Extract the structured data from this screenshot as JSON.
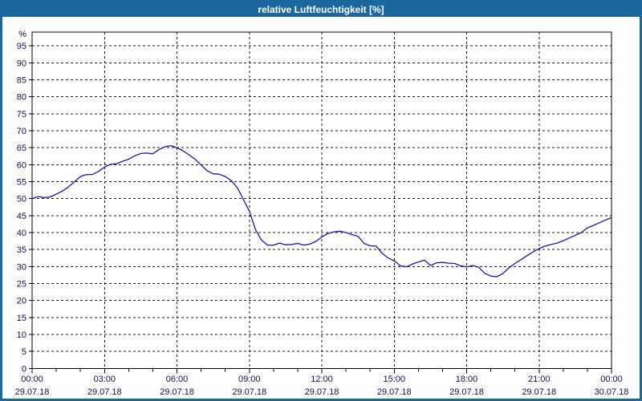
{
  "window": {
    "title": "relative Luftfeuchtigkeit [%]",
    "titlebar_color": "#1b689f",
    "border_color": "#1b689f",
    "title_text_color": "#ffffff"
  },
  "chart_data": {
    "type": "line",
    "title": "relative Luftfeuchtigkeit [%]",
    "ylabel": "%",
    "xlabel": "",
    "ylim": [
      0,
      100
    ],
    "ytick_step": 5,
    "yticks": [
      0,
      5,
      10,
      15,
      20,
      25,
      30,
      35,
      40,
      45,
      50,
      55,
      60,
      65,
      70,
      75,
      80,
      85,
      90,
      95
    ],
    "grid": "dashed",
    "legend": "none",
    "x_axis": {
      "start_hour": 0,
      "end_hour": 24,
      "step_hours": 0.25,
      "minor_tick_hours": 1,
      "major_tick_hours": 3,
      "tick_labels": [
        {
          "time": "00:00",
          "date": "29.07.18"
        },
        {
          "time": "03:00",
          "date": "29.07.18"
        },
        {
          "time": "06:00",
          "date": "29.07.18"
        },
        {
          "time": "09:00",
          "date": "29.07.18"
        },
        {
          "time": "12:00",
          "date": "29.07.18"
        },
        {
          "time": "15:00",
          "date": "29.07.18"
        },
        {
          "time": "18:00",
          "date": "29.07.18"
        },
        {
          "time": "21:00",
          "date": "29.07.18"
        },
        {
          "time": "00:00",
          "date": "30.07.18"
        }
      ]
    },
    "series": [
      {
        "name": "relative Luftfeuchtigkeit",
        "color": "#1717b0",
        "values": [
          50.0,
          50.6,
          50.3,
          50.5,
          51.3,
          52.2,
          53.4,
          54.9,
          56.5,
          57.1,
          57.1,
          58.0,
          59.3,
          60.1,
          60.3,
          61.0,
          61.6,
          62.6,
          63.3,
          63.4,
          63.2,
          64.4,
          65.3,
          65.6,
          65.0,
          64.1,
          62.9,
          61.6,
          59.9,
          58.2,
          57.3,
          57.2,
          56.5,
          55.3,
          53.2,
          49.8,
          46.3,
          40.9,
          37.8,
          36.3,
          36.3,
          36.9,
          36.4,
          36.5,
          36.8,
          36.3,
          36.6,
          37.4,
          38.7,
          39.7,
          40.2,
          40.4,
          40.0,
          39.4,
          38.9,
          36.8,
          36.1,
          36.0,
          33.9,
          32.5,
          31.7,
          30.2,
          29.9,
          30.7,
          31.3,
          31.9,
          30.3,
          31.1,
          31.2,
          31.0,
          30.9,
          30.2,
          29.9,
          30.3,
          29.8,
          28.0,
          27.2,
          27.0,
          27.9,
          29.6,
          30.9,
          32.0,
          33.2,
          34.3,
          35.3,
          36.0,
          36.5,
          36.9,
          37.6,
          38.4,
          39.2,
          40.0,
          41.4,
          42.1,
          42.9,
          43.7,
          44.4
        ]
      }
    ],
    "colors": {
      "grid": "#1a1a1a",
      "axis": "#000000",
      "tick_label": "#101050",
      "plot_bg": "#ffffff"
    }
  }
}
